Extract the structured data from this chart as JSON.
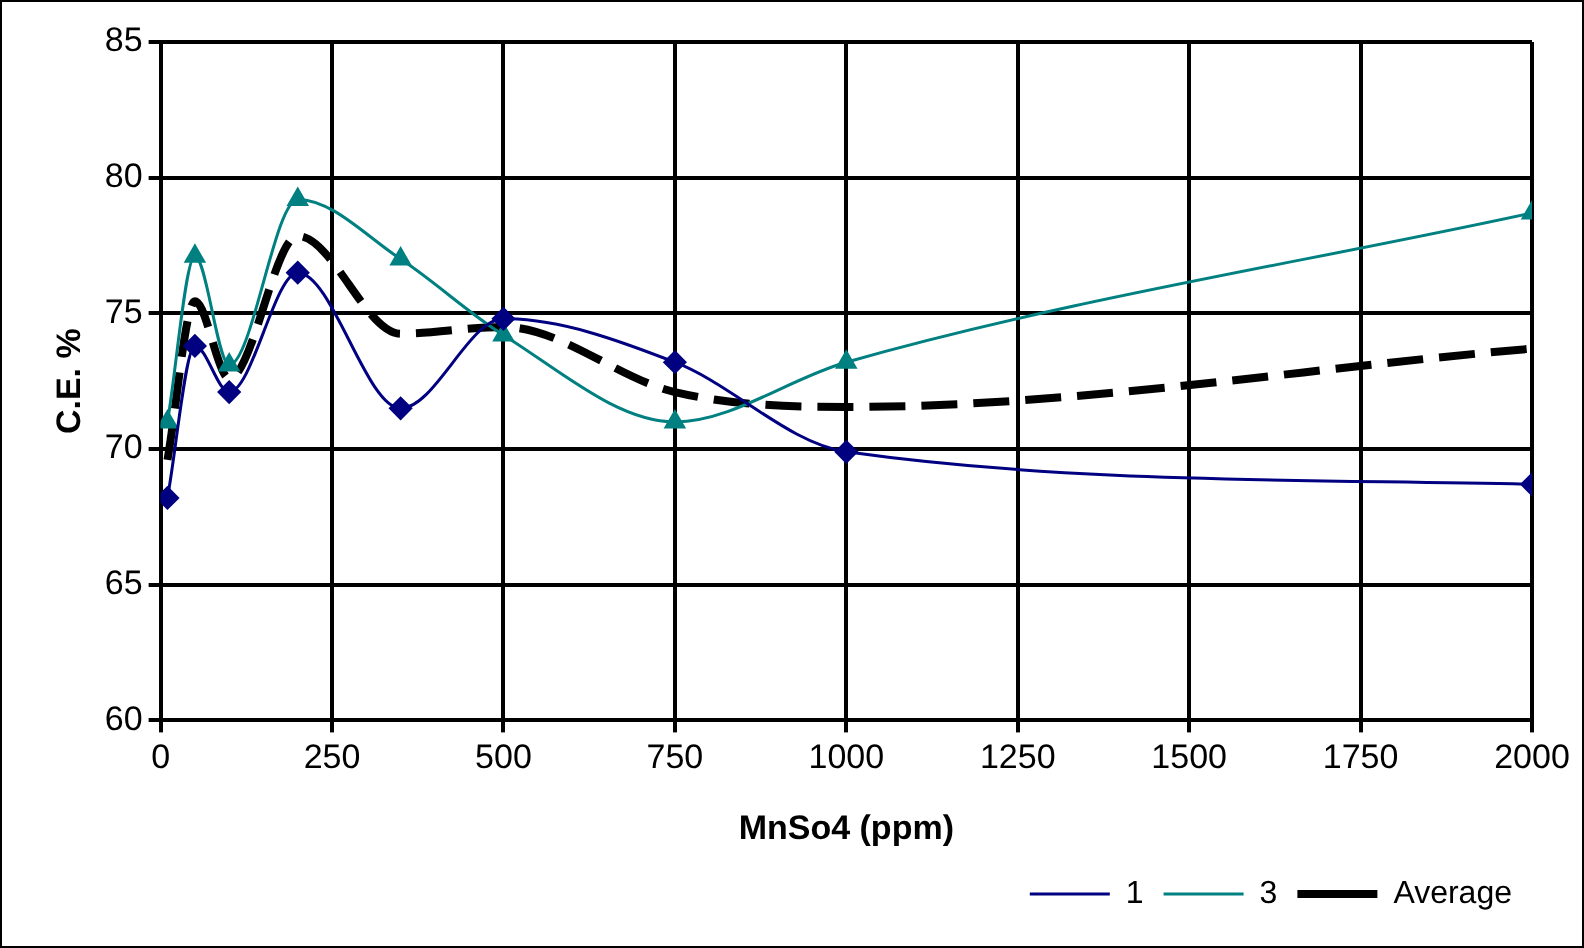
{
  "chart_data": {
    "type": "line",
    "xlabel": "MnSo4 (ppm)",
    "ylabel": "C.E. %",
    "xlim": [
      0,
      2000
    ],
    "xticks": [
      0,
      250,
      500,
      750,
      1000,
      1250,
      1500,
      1750,
      2000
    ],
    "ylim": [
      60,
      85
    ],
    "yticks": [
      60,
      65,
      70,
      75,
      80,
      85
    ],
    "grid": true,
    "legend": "bottom right",
    "x": [
      10,
      50,
      100,
      200,
      350,
      500,
      750,
      1000,
      2000
    ],
    "series": [
      {
        "name": "1",
        "color": "#000080",
        "marker": "diamond",
        "line_style": "solid",
        "values": [
          68.2,
          73.8,
          72.1,
          76.5,
          71.5,
          74.8,
          73.2,
          69.9,
          68.7
        ]
      },
      {
        "name": "3",
        "color": "#008080",
        "marker": "triangle",
        "line_style": "solid",
        "values": [
          71.0,
          77.1,
          73.1,
          79.2,
          77.0,
          74.2,
          71.0,
          73.2,
          78.7
        ]
      },
      {
        "name": "Average",
        "color": "#000000",
        "marker": "none",
        "line_style": "dashed",
        "values": [
          69.6,
          75.45,
          72.6,
          77.85,
          74.25,
          74.5,
          72.1,
          71.55,
          73.7
        ]
      }
    ]
  }
}
